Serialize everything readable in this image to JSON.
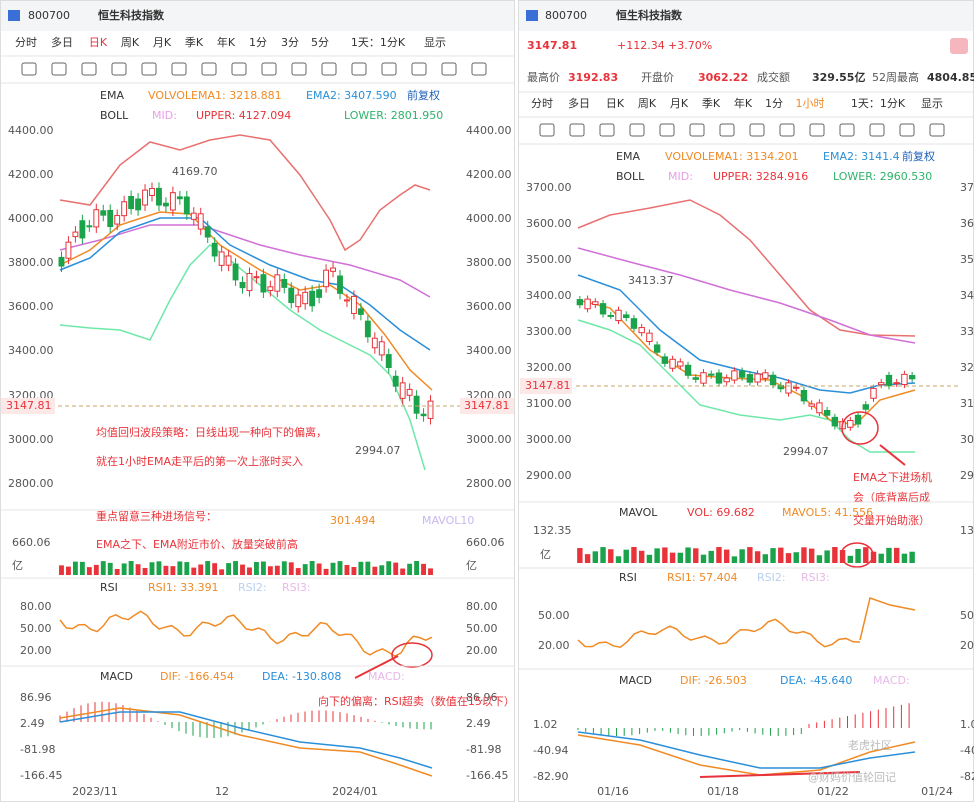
{
  "left": {
    "code": "800700",
    "name": "恒生科技指数",
    "periods": [
      "分时",
      "多日",
      "日K",
      "周K",
      "月K",
      "季K",
      "年K",
      "1分",
      "3分",
      "5分",
      "1天：1分K",
      "显示"
    ],
    "ema": {
      "label": "EMA",
      "v1": "VOLVOLEMA1: 3218.881",
      "v2": "EMA2: 3407.590",
      "adj": "前复权"
    },
    "boll": {
      "label": "BOLL",
      "mid": "MID:",
      "upper": "UPPER: 4127.094",
      "lower": "LOWER: 2801.950"
    },
    "yticks": [
      "4400.00",
      "4200.00",
      "4000.00",
      "3800.00",
      "3600.00",
      "3400.00",
      "3200.00",
      "3000.00",
      "2800.00"
    ],
    "price_tag": "3147.81",
    "high": "4169.70",
    "low": "2994.07",
    "vol": {
      "value": "301.494",
      "mavol": "MAVOL10",
      "tick": "660.06",
      "unit": "亿"
    },
    "rsi": {
      "label": "RSI",
      "rsi1": "RSI1: 33.391",
      "rsi2": "RSI2:",
      "rsi3": "RSI3:",
      "ticks": [
        "80.00",
        "50.00",
        "20.00"
      ]
    },
    "macd": {
      "label": "MACD",
      "dif": "DIF: -166.454",
      "dea": "DEA: -130.808",
      "macd": "MACD:",
      "ticks": [
        "86.96",
        "2.49",
        "-81.98",
        "-166.45"
      ]
    },
    "xticks": [
      "2023/11",
      "12",
      "2024/01"
    ],
    "notes": [
      "均值回归波段策略：日线出现一种向下的偏离，",
      "就在1小时EMA走平后的第一次上涨时买入",
      "重点留意三种进场信号：",
      "EMA之下、EMA附近市价、放量突破前高"
    ],
    "rsi_note": "向下的偏离：RSI超卖（数值在15以下）"
  },
  "right": {
    "code": "800700",
    "name": "恒生科技指数",
    "price": "3147.81",
    "change": "+112.34",
    "pct": "+3.70%",
    "stats": [
      [
        "最高价",
        "3192.83"
      ],
      [
        "开盘价",
        "3062.22"
      ],
      [
        "成交额",
        "329.55亿"
      ],
      [
        "52周最高",
        "4804.85"
      ]
    ],
    "periods": [
      "分时",
      "多日",
      "日K",
      "周K",
      "月K",
      "季K",
      "年K",
      "1分",
      "1小时",
      "1天：1分K",
      "显示"
    ],
    "ema": {
      "label": "EMA",
      "v1": "VOLVOLEMA1: 3134.201",
      "v2": "EMA2: 3141.4",
      "adj": "前复权"
    },
    "boll": {
      "label": "BOLL",
      "mid": "MID:",
      "upper": "UPPER: 3284.916",
      "lower": "LOWER: 2960.530"
    },
    "yticks": [
      "3700.00",
      "3600.00",
      "3500.00",
      "3400.00",
      "3300.00",
      "3200.00",
      "3100.00",
      "3000.00",
      "2900.00"
    ],
    "price_tag": "3147.81",
    "high": "3413.37",
    "low": "2994.07",
    "vol": {
      "label": "MAVOL",
      "value": "VOL: 69.682",
      "mavol": "MAVOL5: 41.556",
      "tick": "132.35",
      "unit": "亿"
    },
    "rsi": {
      "label": "RSI",
      "rsi1": "RSI1: 57.404",
      "rsi2": "RSI2:",
      "rsi3": "RSI3:",
      "ticks": [
        "50.00",
        "20.00"
      ]
    },
    "macd": {
      "label": "MACD",
      "dif": "DIF: -26.503",
      "dea": "DEA: -45.640",
      "macd": "MACD:",
      "ticks": [
        "1.02",
        "-40.94",
        "-82.90"
      ]
    },
    "xticks": [
      "01/16",
      "01/18",
      "01/22",
      "01/24"
    ],
    "notes": [
      "EMA之下进场机",
      "会（底背离后成",
      "交量开始助涨）"
    ]
  },
  "watermark": [
    "老虎社区",
    "@财妈价值轮回记"
  ]
}
